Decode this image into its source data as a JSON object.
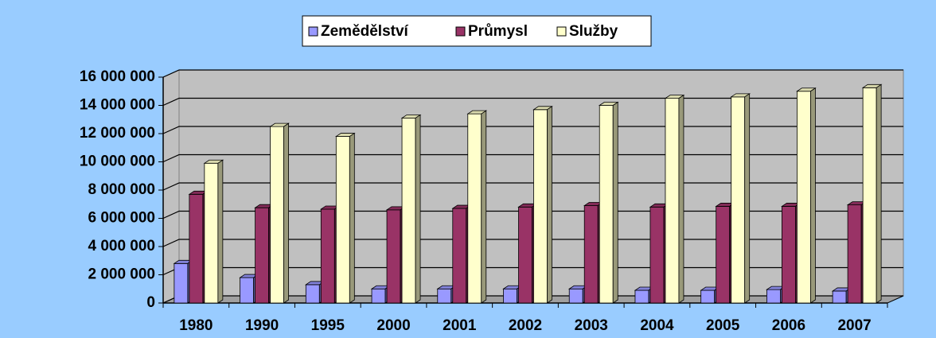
{
  "chart_data": {
    "type": "bar3d",
    "categories": [
      "1980",
      "1990",
      "1995",
      "2000",
      "2001",
      "2002",
      "2003",
      "2004",
      "2005",
      "2006",
      "2007"
    ],
    "series": [
      {
        "name": "Zemědělství",
        "color": "#9999ff",
        "values": [
          2800000,
          1800000,
          1300000,
          1000000,
          1000000,
          1000000,
          1000000,
          900000,
          900000,
          950000,
          850000
        ]
      },
      {
        "name": "Průmysl",
        "color": "#993366",
        "values": [
          7700000,
          6750000,
          6650000,
          6600000,
          6700000,
          6800000,
          6900000,
          6800000,
          6850000,
          6850000,
          6950000
        ]
      },
      {
        "name": "Služby",
        "color": "#ffffcc",
        "values": [
          9900000,
          12500000,
          11800000,
          13100000,
          13400000,
          13700000,
          14000000,
          14500000,
          14600000,
          15000000,
          15250000
        ]
      }
    ],
    "ylim": [
      0,
      16000000
    ],
    "yticks": [
      0,
      {
        "value": 2000000,
        "label": "2 000 000"
      },
      {
        "value": 4000000,
        "label": "4 000 000"
      },
      {
        "value": 6000000,
        "label": "6 000 000"
      },
      {
        "value": 8000000,
        "label": "8 000 000"
      },
      {
        "value": 10000000,
        "label": "10 000 000"
      },
      {
        "value": 12000000,
        "label": "12 000 000"
      },
      {
        "value": 14000000,
        "label": "14 000 000"
      },
      {
        "value": 16000000,
        "label": "16 000 000"
      }
    ],
    "grid": true,
    "legend": "top"
  }
}
